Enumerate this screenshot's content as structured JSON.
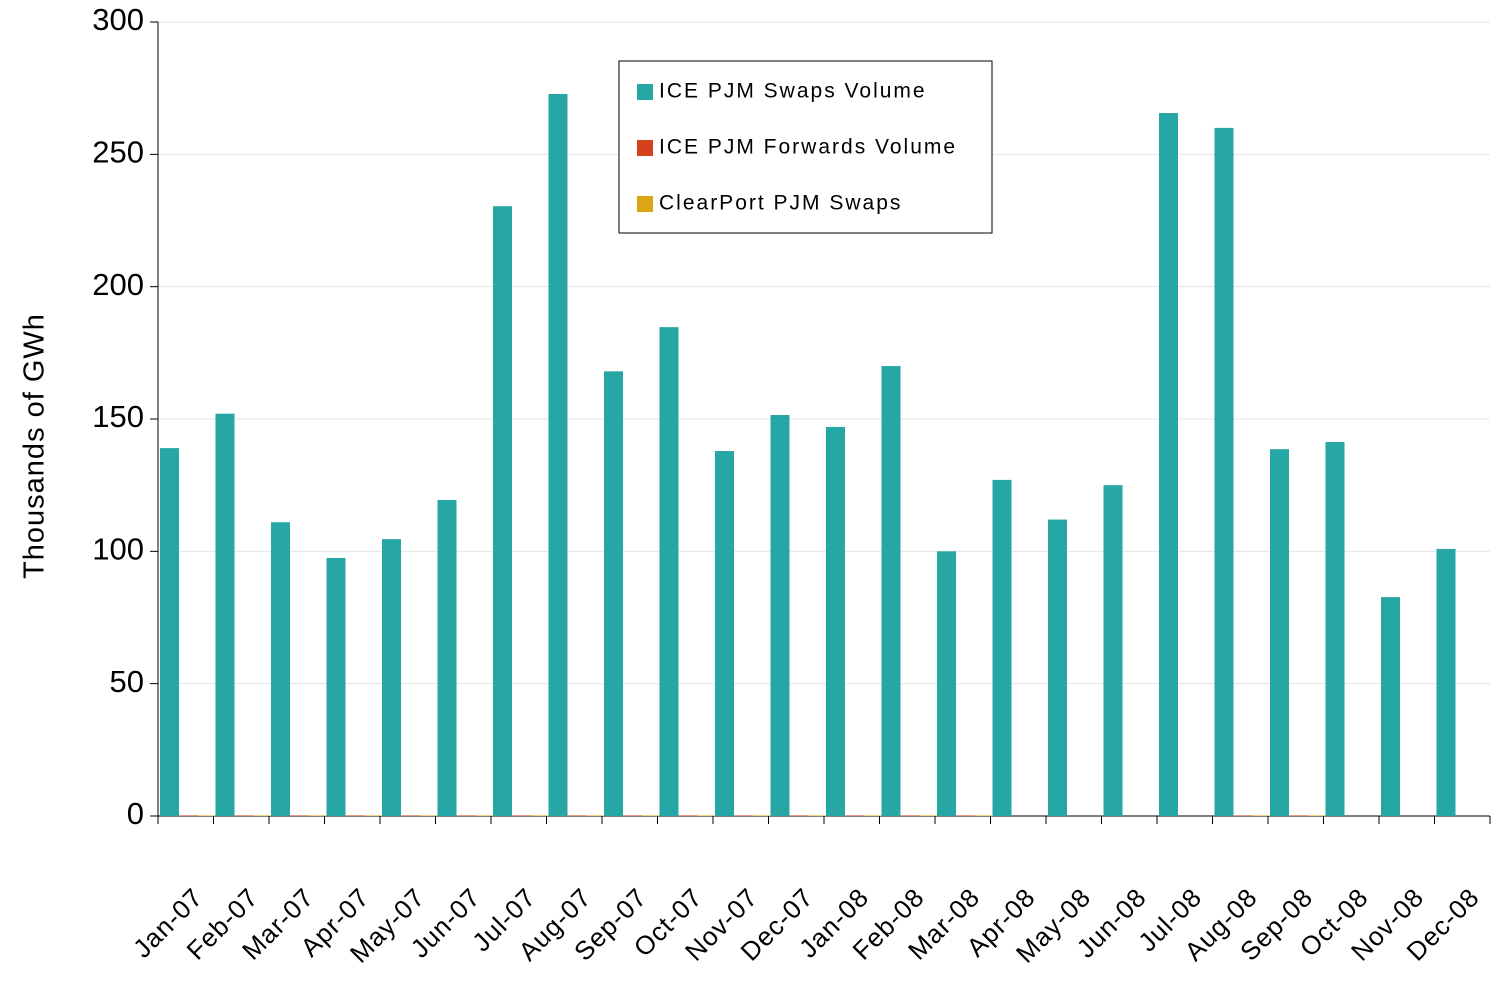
{
  "chart_data": {
    "type": "bar",
    "y_label": "Thousands of GWh",
    "categories": [
      "Jan-07",
      "Feb-07",
      "Mar-07",
      "Apr-07",
      "May-07",
      "Jun-07",
      "Jul-07",
      "Aug-07",
      "Sep-07",
      "Oct-07",
      "Nov-07",
      "Dec-07",
      "Jan-08",
      "Feb-08",
      "Mar-08",
      "Apr-08",
      "May-08",
      "Jun-08",
      "Jul-08",
      "Aug-08",
      "Sep-08",
      "Oct-08",
      "Nov-08",
      "Dec-08"
    ],
    "series": [
      {
        "name": "ICE PJM Swaps Volume",
        "color": "#26a6a4",
        "values": [
          139,
          152,
          111,
          97.5,
          104.6,
          119.4,
          230.4,
          272.8,
          168,
          184.7,
          137.9,
          151.5,
          147,
          170,
          100,
          127,
          112,
          125,
          265.6,
          260,
          138.6,
          141.3,
          82.7,
          100.9
        ]
      },
      {
        "name": "ICE PJM Forwards Volume",
        "color": "#d2401c",
        "values": [
          0.2,
          0.2,
          0.2,
          0.2,
          0.2,
          0.2,
          0.2,
          0.2,
          0.2,
          0.2,
          0.2,
          0.2,
          0.2,
          0.2,
          0.2,
          0,
          0,
          0,
          0,
          0.2,
          0.2,
          0,
          0,
          0
        ]
      },
      {
        "name": "ClearPort PJM Swaps",
        "color": "#dba514",
        "values": [
          0.2,
          0.2,
          0.2,
          0.2,
          0.2,
          0.2,
          0.2,
          0.2,
          0.2,
          0.2,
          0.2,
          0.2,
          0.2,
          0.2,
          0.2,
          0,
          0,
          0,
          0,
          0.2,
          0.2,
          0,
          0,
          0
        ]
      }
    ],
    "ylim": [
      0,
      300
    ],
    "yticks": [
      0,
      50,
      100,
      150,
      200,
      250,
      300
    ],
    "grid": true
  }
}
